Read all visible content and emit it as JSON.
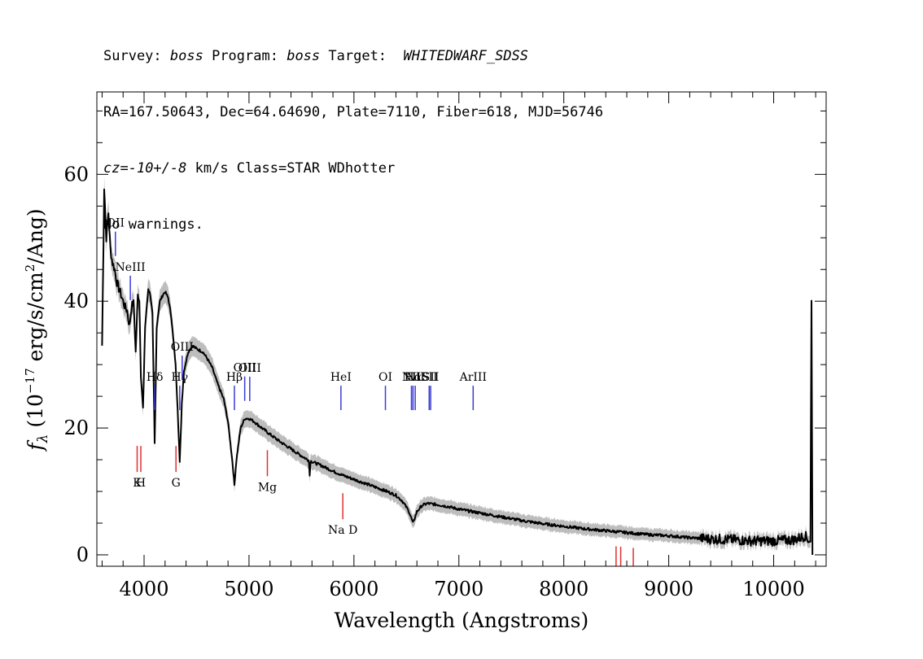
{
  "header": {
    "line1": {
      "survey_label": "Survey: ",
      "survey": "boss",
      "program_label": " Program: ",
      "program": "boss",
      "target_label": " Target:  ",
      "target": "WHITEDWARF_SDSS"
    },
    "line2": "RA=167.50643, Dec=64.64690, Plate=7110, Fiber=618, MJD=56746",
    "line3": {
      "cz_label": "cz",
      "cz_value": "=-10+/-8",
      "rest": " km/s Class=STAR WDhotter"
    },
    "line4": "No warnings."
  },
  "chart_data": {
    "type": "line",
    "xlabel": "Wavelength (Angstroms)",
    "ylabel": "f_λ (10^-17 erg/s/cm^2/Ang)",
    "xlim": [
      3550,
      10500
    ],
    "ylim": [
      -1.8,
      73
    ],
    "x_ticks": [
      4000,
      5000,
      6000,
      7000,
      8000,
      9000,
      10000
    ],
    "y_ticks": [
      0,
      20,
      40,
      60
    ],
    "series": [
      {
        "color": "#000000",
        "points": [
          [
            3600,
            33
          ],
          [
            3620,
            58
          ],
          [
            3640,
            50
          ],
          [
            3660,
            54
          ],
          [
            3680,
            48
          ],
          [
            3700,
            46
          ],
          [
            3720,
            45
          ],
          [
            3740,
            43
          ],
          [
            3760,
            42
          ],
          [
            3780,
            41
          ],
          [
            3800,
            40
          ],
          [
            3820,
            39
          ],
          [
            3840,
            38.5
          ],
          [
            3860,
            36
          ],
          [
            3880,
            39
          ],
          [
            3900,
            40
          ],
          [
            3920,
            32
          ],
          [
            3940,
            41
          ],
          [
            3955,
            40
          ],
          [
            3970,
            28
          ],
          [
            3990,
            23
          ],
          [
            4010,
            36
          ],
          [
            4040,
            42
          ],
          [
            4060,
            41
          ],
          [
            4080,
            38
          ],
          [
            4101,
            17.5
          ],
          [
            4120,
            36
          ],
          [
            4150,
            40
          ],
          [
            4180,
            41
          ],
          [
            4200,
            41.5
          ],
          [
            4230,
            40.5
          ],
          [
            4260,
            37.5
          ],
          [
            4300,
            30
          ],
          [
            4320,
            23
          ],
          [
            4340,
            14.5
          ],
          [
            4360,
            24
          ],
          [
            4380,
            29
          ],
          [
            4420,
            32
          ],
          [
            4460,
            33
          ],
          [
            4500,
            32.5
          ],
          [
            4560,
            32
          ],
          [
            4600,
            31
          ],
          [
            4650,
            29.5
          ],
          [
            4700,
            27
          ],
          [
            4760,
            24.5
          ],
          [
            4800,
            21
          ],
          [
            4840,
            15
          ],
          [
            4861,
            11
          ],
          [
            4880,
            15
          ],
          [
            4920,
            20
          ],
          [
            4960,
            21.5
          ],
          [
            5000,
            21.5
          ],
          [
            5050,
            21
          ],
          [
            5100,
            20.3
          ],
          [
            5200,
            19
          ],
          [
            5300,
            17.8
          ],
          [
            5400,
            16.7
          ],
          [
            5500,
            15.6
          ],
          [
            5570,
            14.9
          ],
          [
            5578,
            12.5
          ],
          [
            5586,
            14.8
          ],
          [
            5700,
            14
          ],
          [
            5800,
            13.2
          ],
          [
            5900,
            12.5
          ],
          [
            6000,
            11.9
          ],
          [
            6100,
            11.3
          ],
          [
            6200,
            10.7
          ],
          [
            6300,
            10.1
          ],
          [
            6400,
            9.4
          ],
          [
            6460,
            8.5
          ],
          [
            6520,
            7
          ],
          [
            6563,
            5
          ],
          [
            6600,
            6.8
          ],
          [
            6650,
            7.8
          ],
          [
            6700,
            8.1
          ],
          [
            6800,
            7.9
          ],
          [
            6900,
            7.6
          ],
          [
            7000,
            7.2
          ],
          [
            7100,
            6.9
          ],
          [
            7200,
            6.6
          ],
          [
            7400,
            6.0
          ],
          [
            7600,
            5.4
          ],
          [
            7800,
            4.9
          ],
          [
            8000,
            4.5
          ],
          [
            8200,
            4.1
          ],
          [
            8400,
            3.8
          ],
          [
            8600,
            3.5
          ],
          [
            8800,
            3.2
          ],
          [
            9000,
            3.0
          ],
          [
            9200,
            2.7
          ],
          [
            9400,
            2.5
          ],
          [
            9600,
            2.4
          ],
          [
            9800,
            2.2
          ],
          [
            10000,
            2.2
          ],
          [
            10200,
            2.4
          ],
          [
            10300,
            3
          ],
          [
            10350,
            2
          ],
          [
            10360,
            40
          ],
          [
            10370,
            0
          ]
        ]
      }
    ],
    "emission_lines": [
      {
        "label": "OII",
        "wavelength": 3727
      },
      {
        "label": "NeIII",
        "wavelength": 3869
      },
      {
        "label": "Hδ",
        "wavelength": 4102
      },
      {
        "label": "Hγ",
        "wavelength": 4340
      },
      {
        "label": "OIII",
        "wavelength": 4363
      },
      {
        "label": "Hβ",
        "wavelength": 4861
      },
      {
        "label": "OIII",
        "wavelength": 4959
      },
      {
        "label": "OIII",
        "wavelength": 5007
      },
      {
        "label": "HeI",
        "wavelength": 5876
      },
      {
        "label": "OI",
        "wavelength": 6300
      },
      {
        "label": "NII",
        "wavelength": 6548
      },
      {
        "label": "Hα",
        "wavelength": 6563
      },
      {
        "label": "NII",
        "wavelength": 6584
      },
      {
        "label": "SII",
        "wavelength": 6717
      },
      {
        "label": "SII",
        "wavelength": 6731
      },
      {
        "label": "ArIII",
        "wavelength": 7136
      }
    ],
    "absorption_lines": [
      {
        "label": "K",
        "wavelength": 3934
      },
      {
        "label": "H",
        "wavelength": 3969
      },
      {
        "label": "G",
        "wavelength": 4304
      },
      {
        "label": "Mg",
        "wavelength": 5175
      },
      {
        "label": "Na D",
        "wavelength": 5894
      },
      {
        "label": "",
        "wavelength": 8498
      },
      {
        "label": "",
        "wavelength": 8542
      },
      {
        "label": "",
        "wavelength": 8662
      }
    ],
    "colors": {
      "emission": "#3b3bd6",
      "absorption": "#e03030",
      "error_band": "#bdbdbd"
    }
  }
}
